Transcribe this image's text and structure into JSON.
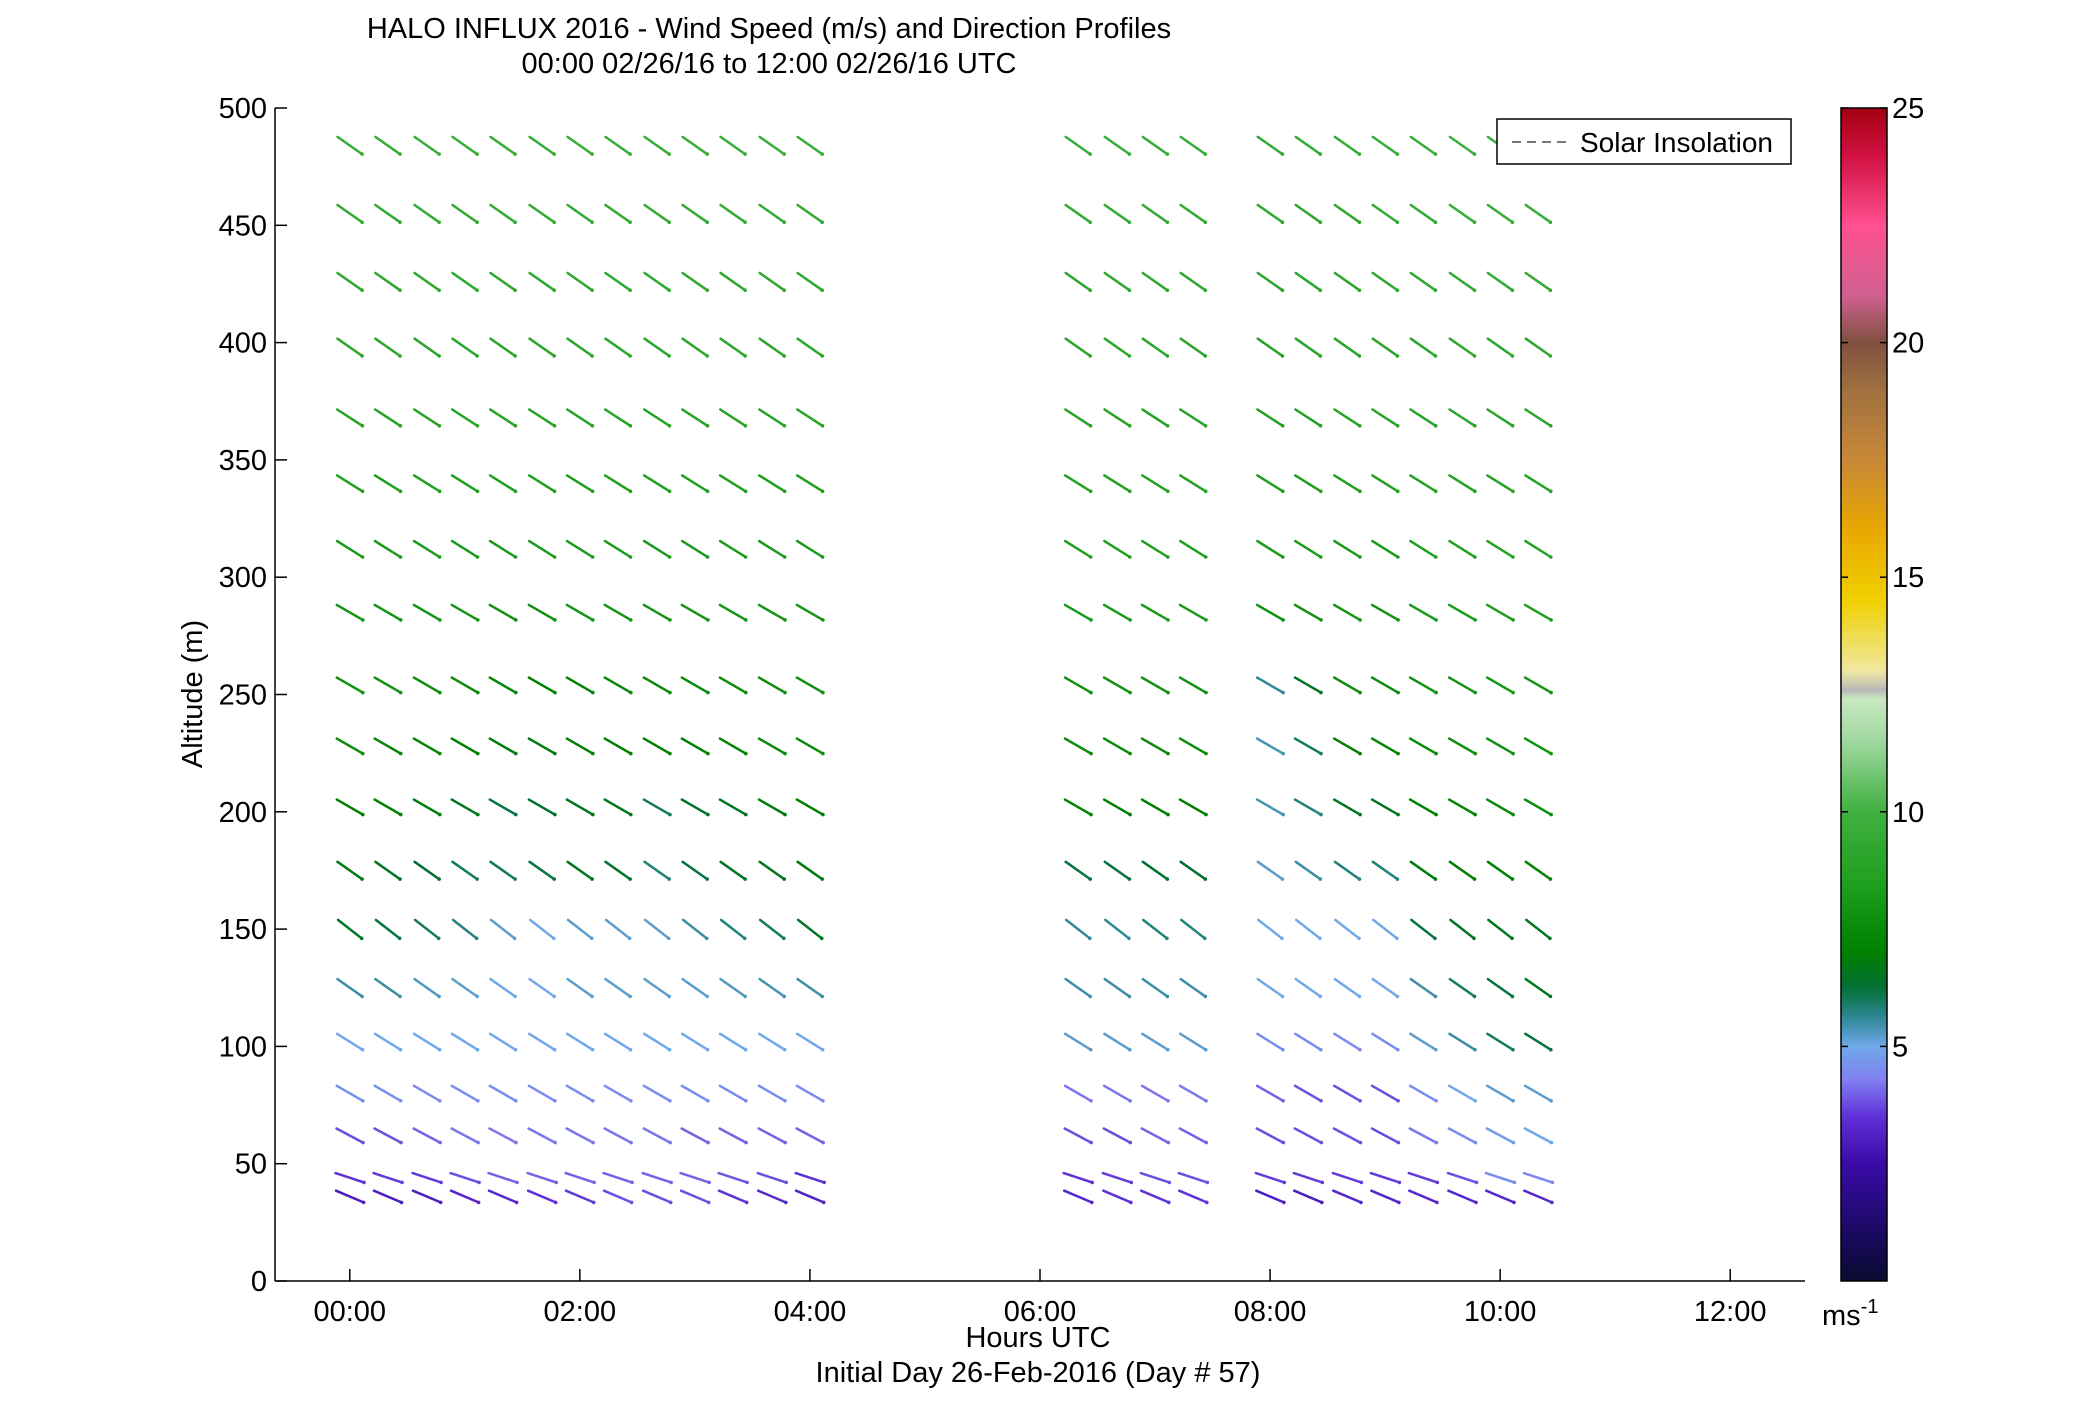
{
  "chart_data": {
    "type": "wind-barb-profile",
    "title": "HALO INFLUX 2016 - Wind Speed (m/s) and Direction Profiles",
    "subtitle": "00:00 02/26/16 to 12:00 02/26/16  UTC",
    "xlabel": "Hours UTC",
    "xlabel2": "Initial Day 26-Feb-2016 (Day # 57)",
    "ylabel": "Altitude (m)",
    "xlim_hours": [
      -0.65,
      12.65
    ],
    "ylim": [
      0,
      500
    ],
    "x_ticks": [
      {
        "value": 0,
        "label": "00:00"
      },
      {
        "value": 2,
        "label": "02:00"
      },
      {
        "value": 4,
        "label": "04:00"
      },
      {
        "value": 6,
        "label": "06:00"
      },
      {
        "value": 8,
        "label": "08:00"
      },
      {
        "value": 10,
        "label": "10:00"
      },
      {
        "value": 12,
        "label": "12:00"
      }
    ],
    "y_ticks": [
      {
        "value": 0,
        "label": "0"
      },
      {
        "value": 50,
        "label": "50"
      },
      {
        "value": 100,
        "label": "100"
      },
      {
        "value": 150,
        "label": "150"
      },
      {
        "value": 200,
        "label": "200"
      },
      {
        "value": 250,
        "label": "250"
      },
      {
        "value": 300,
        "label": "300"
      },
      {
        "value": 350,
        "label": "350"
      },
      {
        "value": 400,
        "label": "400"
      },
      {
        "value": 450,
        "label": "450"
      },
      {
        "value": 500,
        "label": "500"
      }
    ],
    "legend": {
      "label": "Solar Insolation",
      "position": "top-right",
      "style": "dashed"
    },
    "colorbar": {
      "range": [
        0,
        25
      ],
      "unit_base": "ms",
      "unit_exp": "-1",
      "ticks": [
        {
          "value": 5,
          "label": "5"
        },
        {
          "value": 10,
          "label": "10"
        },
        {
          "value": 15,
          "label": "15"
        },
        {
          "value": 20,
          "label": "20"
        },
        {
          "value": 25,
          "label": "25"
        }
      ],
      "stops": [
        {
          "v": 0,
          "c": "#0a0a30"
        },
        {
          "v": 1,
          "c": "#1a0a60"
        },
        {
          "v": 2.5,
          "c": "#3a0aa8"
        },
        {
          "v": 3.5,
          "c": "#6030d8"
        },
        {
          "v": 4.3,
          "c": "#8080f0"
        },
        {
          "v": 5,
          "c": "#70a8e8"
        },
        {
          "v": 5.6,
          "c": "#308898"
        },
        {
          "v": 6.3,
          "c": "#007030"
        },
        {
          "v": 7,
          "c": "#008000"
        },
        {
          "v": 8.5,
          "c": "#20a020"
        },
        {
          "v": 10,
          "c": "#40b040"
        },
        {
          "v": 11.5,
          "c": "#a0d8a0"
        },
        {
          "v": 12.4,
          "c": "#c8e8c0"
        },
        {
          "v": 12.6,
          "c": "#b8b8b8"
        },
        {
          "v": 13,
          "c": "#f0e8a0"
        },
        {
          "v": 14.5,
          "c": "#f0d000"
        },
        {
          "v": 16,
          "c": "#e8a800"
        },
        {
          "v": 17.5,
          "c": "#c88838"
        },
        {
          "v": 19,
          "c": "#a07040"
        },
        {
          "v": 20,
          "c": "#805040"
        },
        {
          "v": 21,
          "c": "#d06090"
        },
        {
          "v": 22.5,
          "c": "#ff5090"
        },
        {
          "v": 24,
          "c": "#d01040"
        },
        {
          "v": 25,
          "c": "#a00010"
        }
      ]
    },
    "altitudes": [
      36,
      44,
      62,
      80,
      102,
      125,
      150,
      175,
      202,
      228,
      254,
      285,
      312,
      340,
      368,
      398,
      426,
      455,
      484
    ],
    "direction_deg": [
      293,
      288,
      298,
      300,
      302,
      305,
      308,
      305,
      300,
      300,
      300,
      300,
      302,
      302,
      303,
      305,
      305,
      305,
      305
    ],
    "hours": [
      0,
      0.33,
      0.67,
      1,
      1.33,
      1.67,
      2,
      2.33,
      2.67,
      3,
      3.33,
      3.67,
      4,
      6.33,
      6.67,
      7,
      7.33,
      8,
      8.33,
      8.67,
      9,
      9.33,
      9.67,
      10,
      10.33
    ],
    "speed_ms": [
      [
        3.0,
        3.0,
        3.0,
        3.2,
        3.3,
        3.5,
        3.6,
        3.8,
        3.8,
        3.8,
        3.5,
        3.3,
        3.1,
        3.3,
        3.5,
        3.5,
        3.5,
        3.0,
        3.0,
        3.2,
        3.2,
        3.3,
        3.3,
        3.3,
        3.3
      ],
      [
        3.5,
        3.6,
        3.6,
        3.8,
        4.0,
        4.0,
        4.0,
        4.0,
        4.0,
        4.0,
        3.9,
        3.8,
        3.5,
        3.5,
        3.6,
        3.8,
        3.8,
        3.6,
        3.6,
        3.6,
        3.6,
        3.6,
        3.8,
        4.5,
        4.5
      ],
      [
        3.8,
        3.8,
        4.0,
        4.2,
        4.2,
        4.2,
        4.2,
        4.2,
        4.2,
        4.0,
        4.0,
        4.0,
        4.0,
        3.8,
        3.8,
        4.0,
        4.0,
        3.8,
        3.8,
        3.8,
        3.8,
        4.2,
        4.5,
        4.8,
        5.0
      ],
      [
        4.6,
        4.6,
        4.5,
        4.5,
        4.5,
        4.5,
        4.5,
        4.5,
        4.5,
        4.5,
        4.5,
        4.5,
        4.5,
        4.2,
        4.2,
        4.2,
        4.2,
        4.0,
        3.8,
        3.8,
        3.8,
        4.5,
        5.0,
        5.2,
        5.2
      ],
      [
        5.0,
        5.0,
        5.0,
        5.0,
        5.0,
        5.0,
        5.0,
        5.0,
        5.0,
        5.0,
        5.0,
        5.0,
        5.0,
        5.2,
        5.2,
        5.2,
        5.2,
        4.5,
        4.5,
        4.5,
        4.5,
        5.2,
        5.5,
        6.0,
        6.2
      ],
      [
        5.5,
        5.5,
        5.3,
        5.2,
        5.0,
        5.0,
        5.2,
        5.2,
        5.2,
        5.2,
        5.3,
        5.4,
        5.5,
        5.5,
        5.5,
        5.5,
        5.5,
        5.0,
        5.0,
        5.0,
        5.0,
        5.5,
        6.0,
        6.2,
        6.5
      ],
      [
        6.5,
        6.2,
        6.0,
        5.8,
        5.2,
        5.0,
        5.2,
        5.2,
        5.2,
        5.5,
        5.8,
        6.0,
        6.5,
        5.6,
        5.6,
        5.8,
        5.8,
        5.0,
        5.0,
        5.0,
        5.0,
        6.2,
        6.4,
        6.6,
        6.6
      ],
      [
        6.8,
        6.5,
        6.3,
        6.0,
        6.0,
        6.2,
        6.6,
        6.4,
        5.8,
        6.2,
        6.4,
        6.6,
        6.8,
        6.2,
        6.2,
        6.3,
        6.3,
        5.2,
        5.5,
        5.8,
        5.8,
        6.8,
        7.0,
        7.0,
        7.2
      ],
      [
        7.0,
        7.0,
        6.8,
        6.5,
        6.2,
        6.4,
        6.6,
        6.6,
        6.0,
        6.3,
        6.5,
        6.8,
        7.0,
        7.2,
        7.0,
        7.0,
        7.0,
        5.4,
        5.8,
        6.5,
        6.5,
        7.0,
        7.2,
        7.4,
        7.5
      ],
      [
        7.5,
        7.3,
        7.2,
        7.0,
        6.8,
        6.8,
        7.0,
        7.0,
        7.0,
        7.0,
        7.2,
        7.4,
        7.5,
        7.5,
        7.5,
        7.5,
        7.5,
        5.4,
        6.0,
        7.0,
        7.2,
        7.4,
        7.6,
        7.8,
        7.8
      ],
      [
        7.8,
        7.8,
        7.6,
        7.5,
        7.3,
        7.0,
        7.2,
        7.4,
        7.4,
        7.5,
        7.6,
        7.6,
        7.8,
        7.8,
        7.8,
        7.8,
        7.8,
        5.6,
        6.5,
        7.5,
        7.6,
        7.8,
        8.0,
        8.0,
        8.0
      ],
      [
        8.0,
        8.0,
        8.0,
        8.0,
        7.8,
        7.8,
        8.0,
        8.0,
        8.0,
        8.0,
        8.0,
        8.0,
        8.0,
        8.2,
        8.2,
        8.2,
        8.2,
        7.8,
        7.8,
        8.0,
        8.0,
        8.2,
        8.3,
        8.4,
        8.4
      ],
      [
        8.2,
        8.2,
        8.2,
        8.2,
        8.2,
        8.2,
        8.2,
        8.2,
        8.2,
        8.2,
        8.2,
        8.2,
        8.2,
        8.4,
        8.4,
        8.4,
        8.4,
        8.2,
        8.2,
        8.2,
        8.2,
        8.4,
        8.5,
        8.6,
        8.6
      ],
      [
        8.5,
        8.5,
        8.5,
        8.5,
        8.5,
        8.5,
        8.5,
        8.5,
        8.5,
        8.5,
        8.5,
        8.5,
        8.5,
        8.6,
        8.6,
        8.6,
        8.6,
        8.4,
        8.4,
        8.5,
        8.5,
        8.6,
        8.7,
        8.8,
        8.8
      ],
      [
        8.8,
        8.8,
        8.8,
        8.8,
        8.8,
        8.8,
        8.8,
        8.8,
        8.8,
        8.8,
        8.8,
        8.8,
        8.8,
        8.8,
        8.8,
        8.8,
        8.8,
        8.6,
        8.6,
        8.7,
        8.8,
        8.8,
        9.0,
        9.0,
        9.0
      ],
      [
        9.0,
        9.0,
        9.0,
        9.0,
        9.0,
        9.0,
        9.0,
        9.0,
        9.0,
        9.0,
        9.0,
        9.0,
        9.0,
        9.0,
        9.0,
        9.0,
        9.0,
        8.8,
        8.8,
        8.8,
        9.0,
        9.0,
        9.2,
        9.2,
        9.2
      ],
      [
        9.2,
        9.2,
        9.2,
        9.2,
        9.2,
        9.2,
        9.2,
        9.2,
        9.2,
        9.2,
        9.2,
        9.2,
        9.2,
        9.2,
        9.2,
        9.2,
        9.2,
        9.0,
        9.0,
        9.0,
        9.2,
        9.2,
        9.4,
        9.4,
        9.4
      ],
      [
        9.4,
        9.4,
        9.4,
        9.4,
        9.4,
        9.4,
        9.4,
        9.4,
        9.4,
        9.4,
        9.4,
        9.4,
        9.4,
        9.4,
        9.4,
        9.4,
        9.4,
        9.2,
        9.2,
        9.2,
        9.4,
        9.4,
        9.6,
        9.6,
        9.6
      ],
      [
        9.6,
        9.6,
        9.6,
        9.6,
        9.6,
        9.6,
        9.6,
        9.6,
        9.6,
        9.6,
        9.6,
        9.6,
        9.6,
        9.6,
        9.6,
        9.6,
        9.6,
        9.4,
        9.4,
        9.4,
        9.6,
        9.6,
        9.8,
        9.8,
        9.8
      ]
    ]
  }
}
